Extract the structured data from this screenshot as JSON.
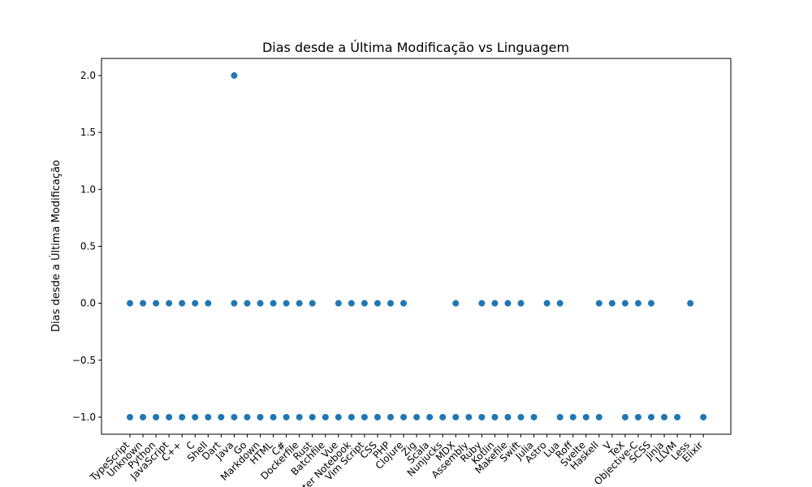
{
  "chart_data": {
    "type": "scatter",
    "title": "Dias desde a Última Modificação vs Linguagem",
    "xlabel": "",
    "ylabel": "Dias desde a Última Modificação",
    "ylim": [
      -1.15,
      2.15
    ],
    "yticks": [
      "−1.0",
      "−0.5",
      "0.0",
      "0.5",
      "1.0",
      "1.5",
      "2.0"
    ],
    "ytick_values": [
      -1.0,
      -0.5,
      0.0,
      0.5,
      1.0,
      1.5,
      2.0
    ],
    "grid": false,
    "marker_color": "#1f77b4",
    "categories": [
      "TypeScript",
      "Unknown",
      "Python",
      "JavaScript",
      "C++",
      "C",
      "Shell",
      "Dart",
      "Java",
      "Go",
      "Markdown",
      "HTML",
      "C#",
      "Dockerfile",
      "Rust",
      "Batchfile",
      "Vue",
      "Jupyter Notebook",
      "Vim Script",
      "CSS",
      "PHP",
      "Clojure",
      "Zig",
      "Scala",
      "Nunjucks",
      "MDX",
      "Assembly",
      "Ruby",
      "Kotlin",
      "Makefile",
      "Swift",
      "Julia",
      "Astro",
      "Lua",
      "Roff",
      "Svelte",
      "Haskell",
      "V",
      "TeX",
      "Objective-C",
      "SCSS",
      "Jinja",
      "LLVM",
      "Less",
      "Elixir"
    ],
    "points": [
      {
        "x": "TypeScript",
        "y": 0
      },
      {
        "x": "TypeScript",
        "y": -1
      },
      {
        "x": "Unknown",
        "y": 0
      },
      {
        "x": "Unknown",
        "y": -1
      },
      {
        "x": "Python",
        "y": 0
      },
      {
        "x": "Python",
        "y": -1
      },
      {
        "x": "JavaScript",
        "y": 0
      },
      {
        "x": "JavaScript",
        "y": -1
      },
      {
        "x": "C++",
        "y": 0
      },
      {
        "x": "C++",
        "y": -1
      },
      {
        "x": "C",
        "y": 0
      },
      {
        "x": "C",
        "y": -1
      },
      {
        "x": "Shell",
        "y": 0
      },
      {
        "x": "Shell",
        "y": -1
      },
      {
        "x": "Dart",
        "y": -1
      },
      {
        "x": "Java",
        "y": 2
      },
      {
        "x": "Java",
        "y": 0
      },
      {
        "x": "Java",
        "y": -1
      },
      {
        "x": "Go",
        "y": 0
      },
      {
        "x": "Go",
        "y": -1
      },
      {
        "x": "Markdown",
        "y": 0
      },
      {
        "x": "Markdown",
        "y": -1
      },
      {
        "x": "HTML",
        "y": 0
      },
      {
        "x": "HTML",
        "y": -1
      },
      {
        "x": "C#",
        "y": 0
      },
      {
        "x": "C#",
        "y": -1
      },
      {
        "x": "Dockerfile",
        "y": 0
      },
      {
        "x": "Dockerfile",
        "y": -1
      },
      {
        "x": "Rust",
        "y": 0
      },
      {
        "x": "Rust",
        "y": -1
      },
      {
        "x": "Batchfile",
        "y": -1
      },
      {
        "x": "Vue",
        "y": 0
      },
      {
        "x": "Vue",
        "y": -1
      },
      {
        "x": "Jupyter Notebook",
        "y": 0
      },
      {
        "x": "Jupyter Notebook",
        "y": -1
      },
      {
        "x": "Vim Script",
        "y": 0
      },
      {
        "x": "Vim Script",
        "y": -1
      },
      {
        "x": "CSS",
        "y": 0
      },
      {
        "x": "CSS",
        "y": -1
      },
      {
        "x": "PHP",
        "y": 0
      },
      {
        "x": "PHP",
        "y": -1
      },
      {
        "x": "Clojure",
        "y": 0
      },
      {
        "x": "Clojure",
        "y": -1
      },
      {
        "x": "Zig",
        "y": -1
      },
      {
        "x": "Scala",
        "y": -1
      },
      {
        "x": "Nunjucks",
        "y": -1
      },
      {
        "x": "MDX",
        "y": 0
      },
      {
        "x": "MDX",
        "y": -1
      },
      {
        "x": "Assembly",
        "y": -1
      },
      {
        "x": "Ruby",
        "y": 0
      },
      {
        "x": "Ruby",
        "y": -1
      },
      {
        "x": "Kotlin",
        "y": 0
      },
      {
        "x": "Kotlin",
        "y": -1
      },
      {
        "x": "Makefile",
        "y": 0
      },
      {
        "x": "Makefile",
        "y": -1
      },
      {
        "x": "Swift",
        "y": 0
      },
      {
        "x": "Swift",
        "y": -1
      },
      {
        "x": "Julia",
        "y": -1
      },
      {
        "x": "Astro",
        "y": 0
      },
      {
        "x": "Lua",
        "y": 0
      },
      {
        "x": "Lua",
        "y": -1
      },
      {
        "x": "Roff",
        "y": -1
      },
      {
        "x": "Svelte",
        "y": -1
      },
      {
        "x": "Haskell",
        "y": 0
      },
      {
        "x": "Haskell",
        "y": -1
      },
      {
        "x": "V",
        "y": 0
      },
      {
        "x": "TeX",
        "y": 0
      },
      {
        "x": "TeX",
        "y": -1
      },
      {
        "x": "Objective-C",
        "y": 0
      },
      {
        "x": "Objective-C",
        "y": -1
      },
      {
        "x": "SCSS",
        "y": 0
      },
      {
        "x": "SCSS",
        "y": -1
      },
      {
        "x": "Jinja",
        "y": -1
      },
      {
        "x": "LLVM",
        "y": -1
      },
      {
        "x": "Less",
        "y": 0
      },
      {
        "x": "Elixir",
        "y": -1
      }
    ]
  }
}
